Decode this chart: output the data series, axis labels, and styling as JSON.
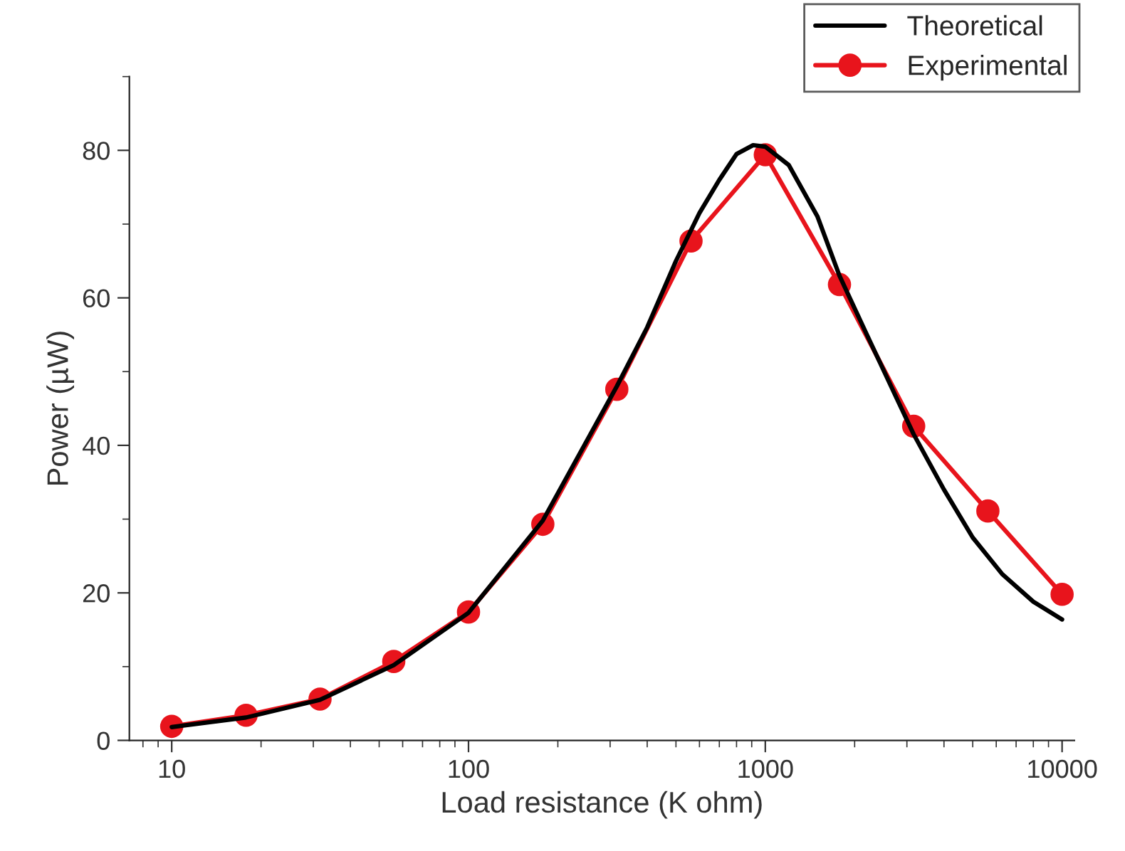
{
  "chart_data": {
    "type": "line",
    "xlabel": "Load resistance (K ohm)",
    "ylabel": "Power (µW)",
    "log": "x",
    "xlim": [
      7.2,
      11000
    ],
    "xticks": [
      10,
      100,
      1000,
      10000
    ],
    "ylim": [
      0,
      90
    ],
    "yticks": [
      0,
      20,
      40,
      60,
      80
    ],
    "grid": false,
    "legend": "top right",
    "line_style": "solid",
    "series": [
      {
        "name": "Theoretical",
        "color": "#000000",
        "marker": "none",
        "x": [
          10,
          17.8,
          31.6,
          56,
          100,
          178,
          316,
          400,
          500,
          600,
          700,
          800,
          910,
          1000,
          1200,
          1500,
          1778,
          2200,
          2800,
          3162,
          4000,
          5000,
          6300,
          8000,
          10000
        ],
        "values": [
          1.8,
          3.1,
          5.5,
          10.2,
          17.3,
          29.8,
          48,
          56,
          65,
          71.5,
          76,
          79.5,
          80.7,
          80.5,
          78,
          71,
          63,
          55,
          46,
          41.5,
          34,
          27.5,
          22.5,
          18.8,
          16.4
        ]
      },
      {
        "name": "Experimental",
        "color": "#e8141c",
        "marker": "circle",
        "x": [
          10,
          17.8,
          31.6,
          56,
          100,
          178,
          316,
          562,
          1000,
          1778,
          3162,
          5623,
          10000
        ],
        "values": [
          1.9,
          3.4,
          5.6,
          10.7,
          17.4,
          29.3,
          47.6,
          67.7,
          79.4,
          61.8,
          42.6,
          31.1,
          19.8
        ]
      }
    ]
  }
}
